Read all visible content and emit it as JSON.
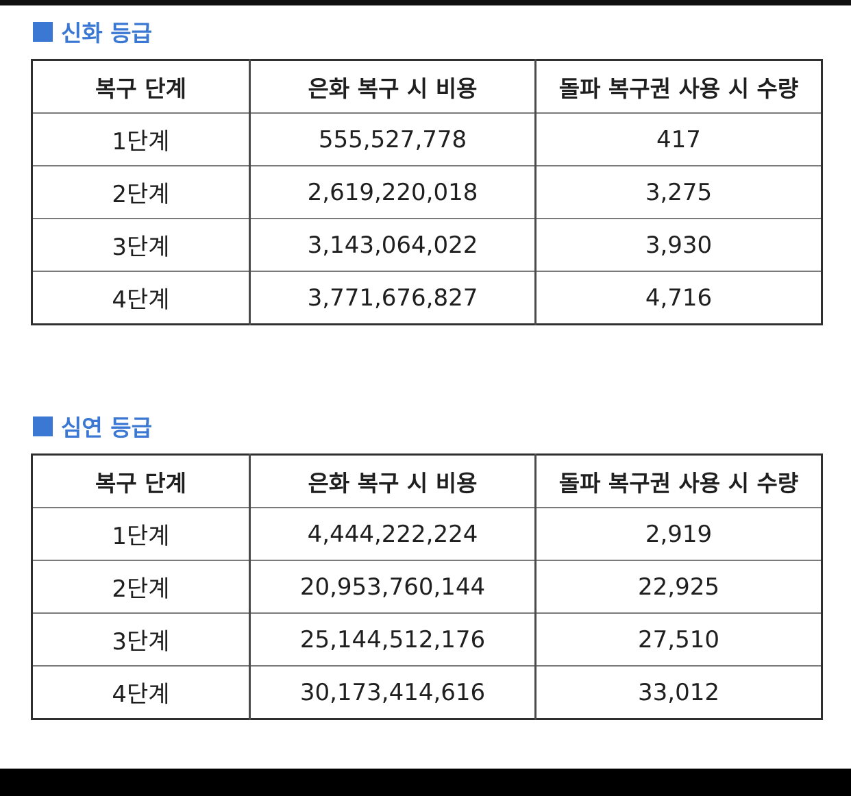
{
  "sections": [
    {
      "title": "신화 등급",
      "headers": [
        "복구 단계",
        "은화 복구 시 비용",
        "돌파 복구권 사용 시 수량"
      ],
      "rows": [
        [
          "1단계",
          "555,527,778",
          "417"
        ],
        [
          "2단계",
          "2,619,220,018",
          "3,275"
        ],
        [
          "3단계",
          "3,143,064,022",
          "3,930"
        ],
        [
          "4단계",
          "3,771,676,827",
          "4,716"
        ]
      ]
    },
    {
      "title": "심연 등급",
      "headers": [
        "복구 단계",
        "은화 복구 시 비용",
        "돌파 복구권 사용 시 수량"
      ],
      "rows": [
        [
          "1단계",
          "4,444,222,224",
          "2,919"
        ],
        [
          "2단계",
          "20,953,760,144",
          "22,925"
        ],
        [
          "3단계",
          "25,144,512,176",
          "27,510"
        ],
        [
          "4단계",
          "30,173,414,616",
          "33,012"
        ]
      ]
    }
  ],
  "colors": {
    "accent": "#3a78d4",
    "border": "#2f2f2f",
    "text": "#1f1f1f"
  }
}
